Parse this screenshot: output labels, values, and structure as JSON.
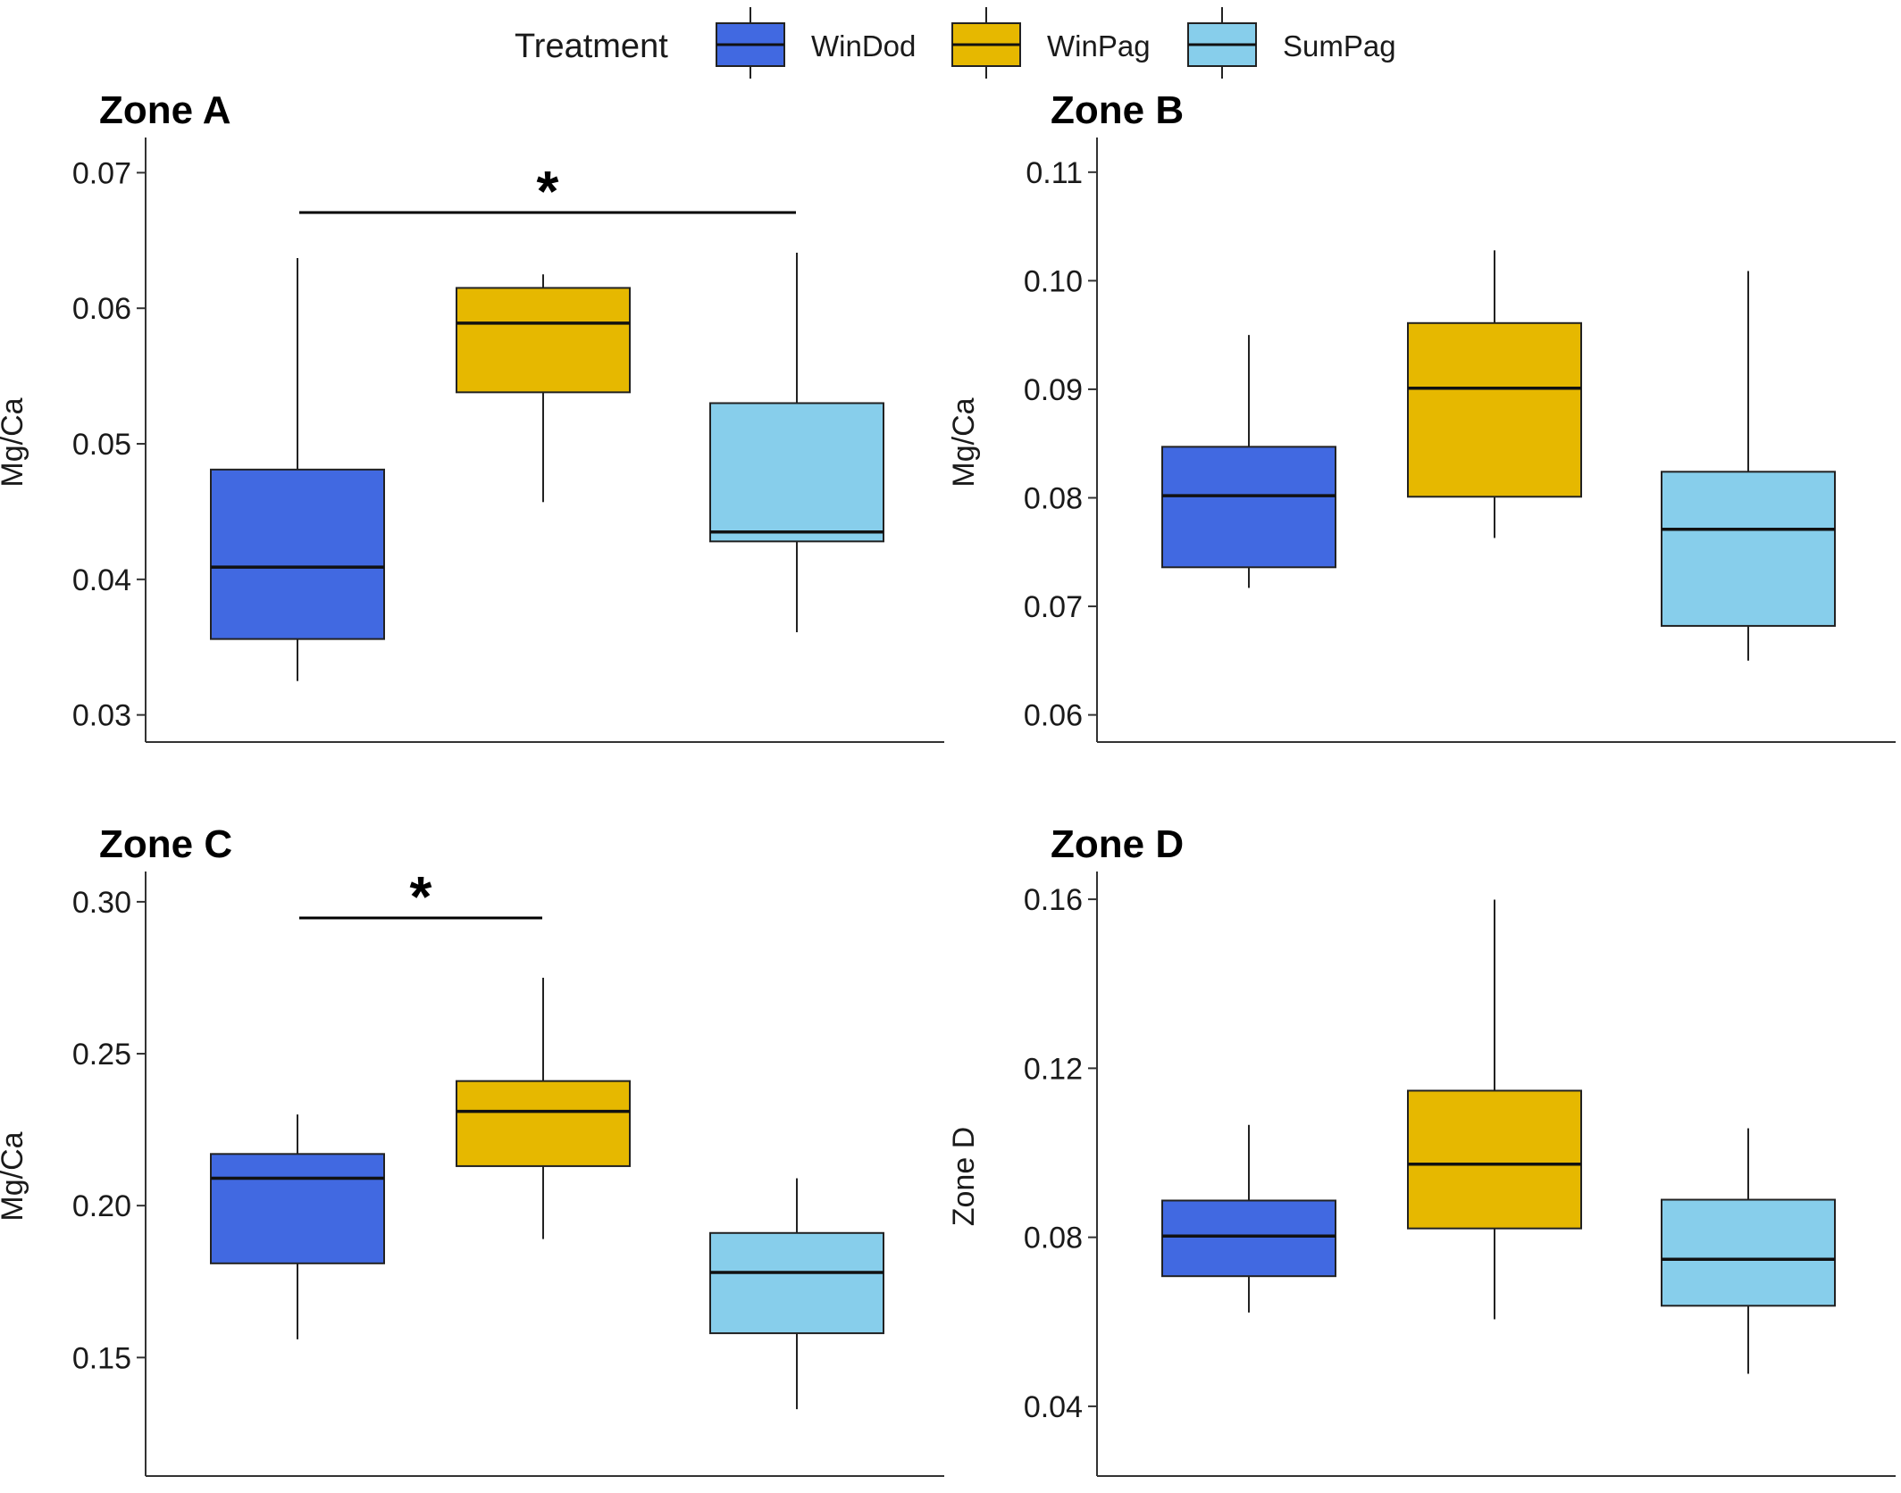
{
  "legend": {
    "title": "Treatment",
    "items": [
      {
        "label": "WinDod",
        "color": "#4169E1"
      },
      {
        "label": "WinPag",
        "color": "#E6B800"
      },
      {
        "label": "SumPag",
        "color": "#87CEEB"
      }
    ]
  },
  "chart_data": [
    {
      "type": "boxplot",
      "title": "Zone A",
      "ylabel": "Mg/Ca",
      "ylim": [
        0.028,
        0.0722
      ],
      "yticks": [
        "0.03",
        "0.04",
        "0.05",
        "0.06",
        "0.07"
      ],
      "ytick_values": [
        0.03,
        0.04,
        0.05,
        0.06,
        0.07
      ],
      "boxes": [
        {
          "group": "WinDod",
          "min": 0.0325,
          "q1": 0.0356,
          "median": 0.0409,
          "q3": 0.0481,
          "max": 0.0637
        },
        {
          "group": "WinPag",
          "min": 0.0457,
          "q1": 0.0538,
          "median": 0.0589,
          "q3": 0.0615,
          "max": 0.0625
        },
        {
          "group": "SumPag",
          "min": 0.0361,
          "q1": 0.0428,
          "median": 0.0435,
          "q3": 0.053,
          "max": 0.0641
        }
      ],
      "significance": [
        {
          "from": "WinDod",
          "to": "SumPag",
          "label": "*"
        }
      ]
    },
    {
      "type": "boxplot",
      "title": "Zone B",
      "ylabel": "Mg/Ca",
      "ylim": [
        0.0575,
        0.1127
      ],
      "yticks": [
        "0.06",
        "0.07",
        "0.08",
        "0.09",
        "0.10",
        "0.11"
      ],
      "ytick_values": [
        0.06,
        0.07,
        0.08,
        0.09,
        0.1,
        0.11
      ],
      "boxes": [
        {
          "group": "WinDod",
          "min": 0.0717,
          "q1": 0.0736,
          "median": 0.0802,
          "q3": 0.0847,
          "max": 0.095
        },
        {
          "group": "WinPag",
          "min": 0.0763,
          "q1": 0.0801,
          "median": 0.0901,
          "q3": 0.0961,
          "max": 0.1028
        },
        {
          "group": "SumPag",
          "min": 0.065,
          "q1": 0.0682,
          "median": 0.0771,
          "q3": 0.0824,
          "max": 0.1009
        }
      ],
      "significance": []
    },
    {
      "type": "boxplot",
      "title": "Zone C",
      "ylabel": "Mg/Ca",
      "ylim": [
        0.111,
        0.3082
      ],
      "yticks": [
        "0.15",
        "0.20",
        "0.25",
        "0.30"
      ],
      "ytick_values": [
        0.15,
        0.2,
        0.25,
        0.3
      ],
      "boxes": [
        {
          "group": "WinDod",
          "min": 0.156,
          "q1": 0.181,
          "median": 0.209,
          "q3": 0.217,
          "max": 0.23
        },
        {
          "group": "WinPag",
          "min": 0.189,
          "q1": 0.213,
          "median": 0.231,
          "q3": 0.241,
          "max": 0.275
        },
        {
          "group": "SumPag",
          "min": 0.133,
          "q1": 0.158,
          "median": 0.178,
          "q3": 0.191,
          "max": 0.209
        }
      ],
      "significance": [
        {
          "from": "WinDod",
          "to": "WinPag",
          "label": "*"
        }
      ]
    },
    {
      "type": "boxplot",
      "title": "Zone D",
      "ylabel": "Zone D",
      "ylim": [
        0.0235,
        0.1653
      ],
      "yticks": [
        "0.04",
        "0.08",
        "0.12",
        "0.16"
      ],
      "ytick_values": [
        0.04,
        0.08,
        0.12,
        0.16
      ],
      "boxes": [
        {
          "group": "WinDod",
          "min": 0.0622,
          "q1": 0.0708,
          "median": 0.0803,
          "q3": 0.0887,
          "max": 0.1066
        },
        {
          "group": "WinPag",
          "min": 0.0606,
          "q1": 0.0821,
          "median": 0.0973,
          "q3": 0.1147,
          "max": 0.1599
        },
        {
          "group": "SumPag",
          "min": 0.0477,
          "q1": 0.0638,
          "median": 0.0748,
          "q3": 0.0889,
          "max": 0.1058
        }
      ],
      "significance": []
    }
  ]
}
